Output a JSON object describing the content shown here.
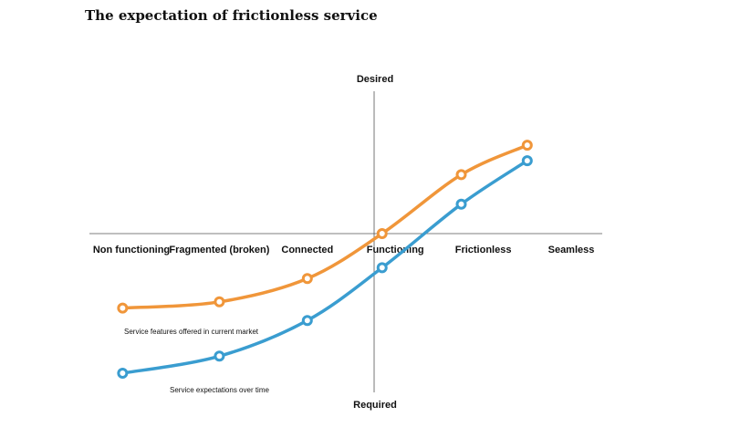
{
  "title": "The expectation of frictionless service",
  "chart_data": {
    "type": "line",
    "title": "The expectation of frictionless service",
    "categories": [
      "Non functioning",
      "Fragmented (broken)",
      "Connected",
      "Functioning",
      "Frictionless",
      "Seamless"
    ],
    "y_axis_top_label": "Desired",
    "y_axis_bottom_label": "Required",
    "ylim": [
      -1,
      1
    ],
    "grid": false,
    "series": [
      {
        "name": "Service features offered in current market",
        "color": "#F0963A",
        "points": [
          {
            "x": -0.1,
            "y": -0.48
          },
          {
            "x": 1.0,
            "y": -0.44
          },
          {
            "x": 2.0,
            "y": -0.29
          },
          {
            "x": 2.85,
            "y": 0.0
          },
          {
            "x": 3.75,
            "y": 0.38
          },
          {
            "x": 4.5,
            "y": 0.57
          }
        ]
      },
      {
        "name": "Service expectations over time",
        "color": "#3A9DD0",
        "points": [
          {
            "x": -0.1,
            "y": -0.9
          },
          {
            "x": 1.0,
            "y": -0.79
          },
          {
            "x": 2.0,
            "y": -0.56
          },
          {
            "x": 2.85,
            "y": -0.22
          },
          {
            "x": 3.75,
            "y": 0.19
          },
          {
            "x": 4.5,
            "y": 0.47
          }
        ]
      }
    ]
  }
}
